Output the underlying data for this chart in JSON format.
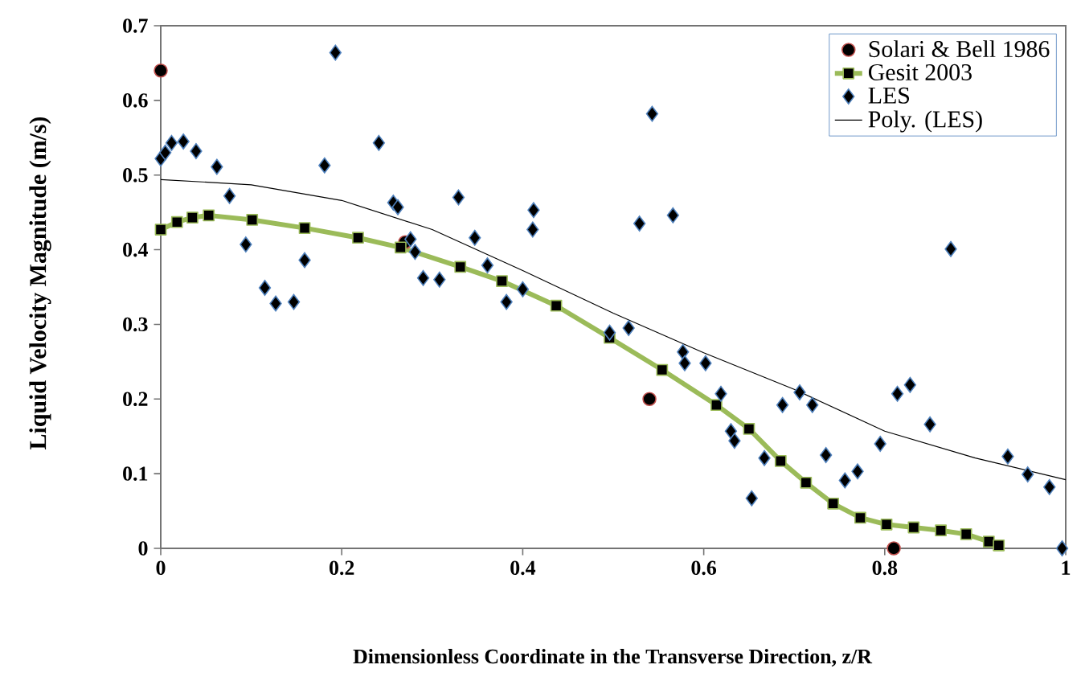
{
  "chart_data": {
    "type": "scatter",
    "xlabel": "Dimensionless Coordinate in the Transverse Direction, z/R",
    "ylabel": "Liquid Velocity Magnitude (m/s)",
    "xlim": [
      0,
      1
    ],
    "ylim": [
      0,
      0.7
    ],
    "xticks": [
      0,
      0.2,
      0.4,
      0.6,
      0.8,
      1
    ],
    "yticks": [
      0,
      0.1,
      0.2,
      0.3,
      0.4,
      0.5,
      0.6,
      0.7
    ],
    "grid": false,
    "legend": "top right",
    "series": [
      {
        "name": "Solari & Bell 1986",
        "marker": "circle",
        "color": "#000000",
        "x": [
          0,
          0.27,
          0.54,
          0.81
        ],
        "values": [
          0.64,
          0.41,
          0.2,
          0
        ]
      },
      {
        "name": "Gesit 2003",
        "type": "line",
        "marker": "square",
        "color": "#9bbb59",
        "x": [
          0,
          0.018,
          0.035,
          0.053,
          0.101,
          0.159,
          0.218,
          0.265,
          0.331,
          0.377,
          0.437,
          0.496,
          0.554,
          0.614,
          0.65,
          0.685,
          0.713,
          0.743,
          0.773,
          0.802,
          0.832,
          0.862,
          0.89,
          0.915,
          0.926
        ],
        "values": [
          0.427,
          0.437,
          0.443,
          0.446,
          0.44,
          0.429,
          0.416,
          0.403,
          0.377,
          0.358,
          0.325,
          0.282,
          0.239,
          0.192,
          0.16,
          0.117,
          0.088,
          0.06,
          0.041,
          0.032,
          0.028,
          0.024,
          0.019,
          0.009,
          0.004
        ]
      },
      {
        "name": "LES",
        "marker": "diamond",
        "color": "#000000",
        "x": [
          0,
          0.005,
          0.012,
          0.025,
          0.039,
          0.062,
          0.076,
          0.094,
          0.115,
          0.127,
          0.147,
          0.159,
          0.181,
          0.193,
          0.241,
          0.257,
          0.262,
          0.276,
          0.281,
          0.29,
          0.308,
          0.329,
          0.347,
          0.361,
          0.382,
          0.4,
          0.412,
          0.411,
          0.496,
          0.517,
          0.529,
          0.543,
          0.566,
          0.577,
          0.579,
          0.602,
          0.619,
          0.63,
          0.634,
          0.653,
          0.667,
          0.687,
          0.706,
          0.72,
          0.735,
          0.756,
          0.77,
          0.795,
          0.814,
          0.828,
          0.85,
          0.873,
          0.936,
          0.958,
          0.982,
          0.996
        ],
        "values": [
          0.522,
          0.53,
          0.543,
          0.545,
          0.532,
          0.511,
          0.472,
          0.407,
          0.349,
          0.328,
          0.33,
          0.386,
          0.513,
          0.664,
          0.543,
          0.463,
          0.457,
          0.414,
          0.397,
          0.362,
          0.36,
          0.47,
          0.416,
          0.379,
          0.33,
          0.347,
          0.453,
          0.427,
          0.289,
          0.295,
          0.435,
          0.582,
          0.446,
          0.263,
          0.248,
          0.248,
          0.207,
          0.157,
          0.144,
          0.067,
          0.121,
          0.192,
          0.209,
          0.192,
          0.125,
          0.091,
          0.103,
          0.14,
          0.207,
          0.219,
          0.166,
          0.401,
          0.123,
          0.099,
          0.082,
          0
        ]
      },
      {
        "name": "Poly. (LES)",
        "type": "line",
        "marker": "none",
        "color": "#000000",
        "x": [
          0,
          0.1,
          0.2,
          0.3,
          0.4,
          0.5,
          0.6,
          0.7,
          0.8,
          0.9,
          1
        ],
        "values": [
          0.494,
          0.487,
          0.466,
          0.427,
          0.372,
          0.315,
          0.262,
          0.213,
          0.157,
          0.121,
          0.092
        ]
      }
    ]
  }
}
